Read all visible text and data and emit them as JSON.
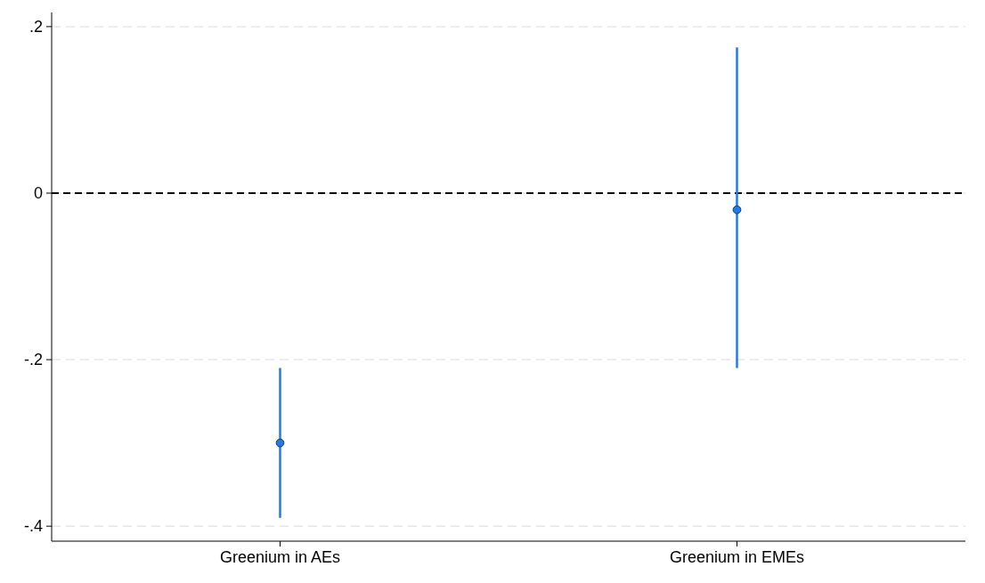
{
  "chart_data": {
    "type": "scatter",
    "categories": [
      "Greenium in AEs",
      "Greenium in EMEs"
    ],
    "series": [
      {
        "color": "#1f7be8",
        "values": [
          -0.3,
          -0.02
        ],
        "errors": [
          [
            -0.39,
            -0.21
          ],
          [
            -0.21,
            0.175
          ]
        ]
      }
    ],
    "ylim": [
      -0.418,
      0.217
    ],
    "yticks": [
      {
        "value": -0.4,
        "label": "-.4"
      },
      {
        "value": -0.2,
        "label": "-.2"
      },
      {
        "value": 0,
        "label": "0"
      },
      {
        "value": 0.2,
        "label": ".2"
      }
    ],
    "grid": "y",
    "marker": "circle",
    "ref_lines": [
      {
        "axis": "y",
        "value": 0,
        "color": "#000000",
        "line_style": "dashed"
      }
    ]
  }
}
